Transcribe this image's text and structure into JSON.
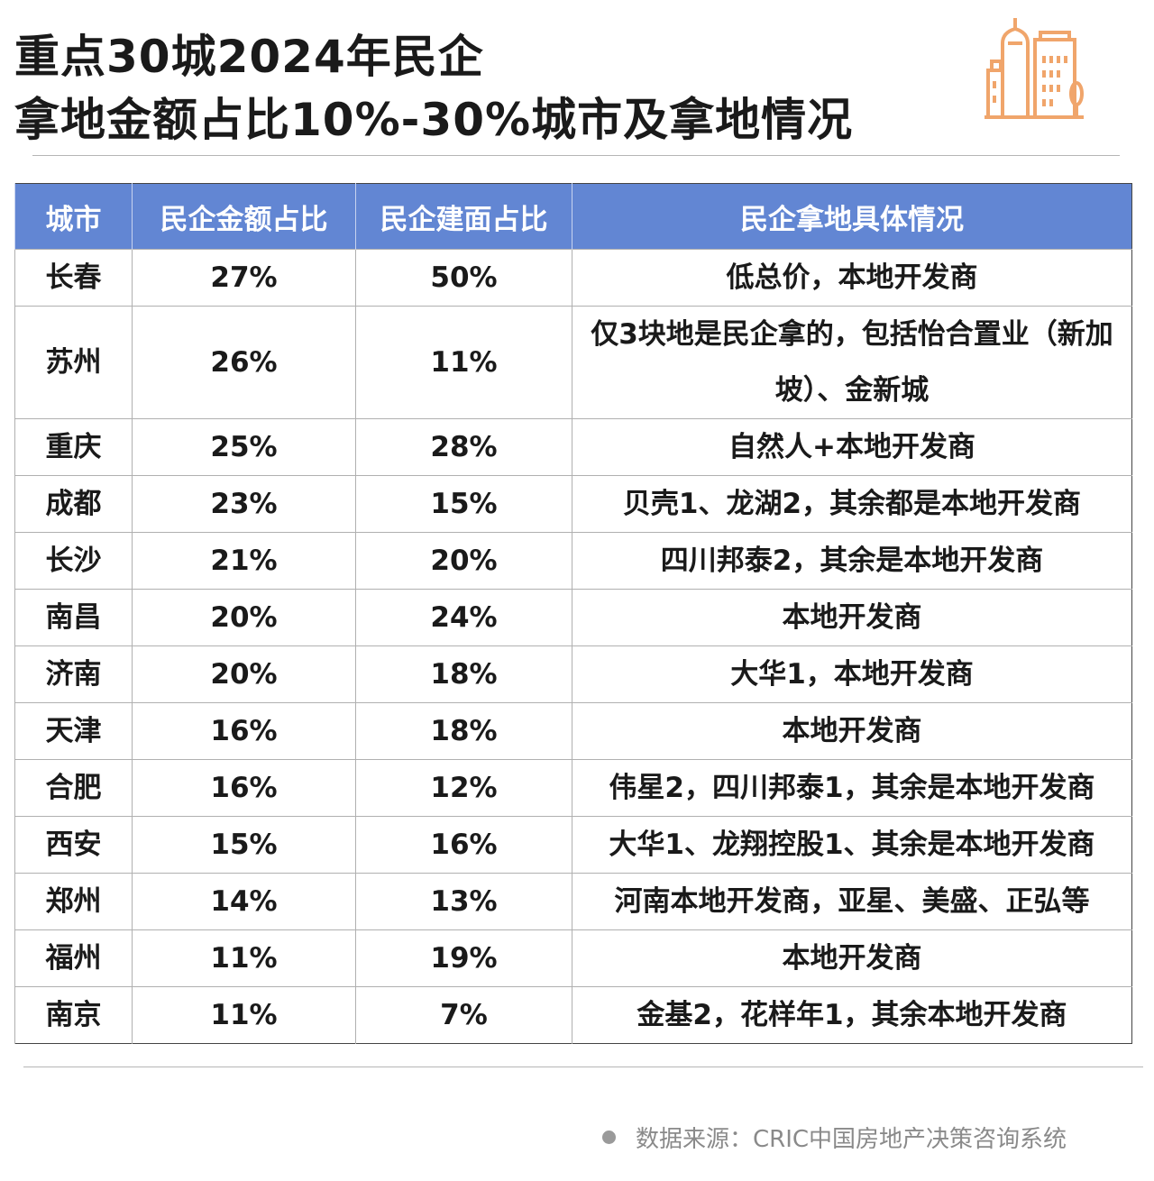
{
  "title": {
    "line1": "重点30城2024年民企",
    "line2": "拿地金额占比10%-30%城市及拿地情况"
  },
  "logo_icon": "city-buildings-icon",
  "colors": {
    "header_bg": "#6286d3",
    "logo": "#f0a56b"
  },
  "chart_data": {
    "type": "table",
    "columns": [
      "城市",
      "民企金额占比",
      "民企建面占比",
      "民企拿地具体情况"
    ],
    "rows": [
      [
        "长春",
        "27%",
        "50%",
        "低总价，本地开发商"
      ],
      [
        "苏州",
        "26%",
        "11%",
        "仅3块地是民企拿的，包括怡合置业（新加坡）、金新城"
      ],
      [
        "重庆",
        "25%",
        "28%",
        "自然人+本地开发商"
      ],
      [
        "成都",
        "23%",
        "15%",
        "贝壳1、龙湖2，其余都是本地开发商"
      ],
      [
        "长沙",
        "21%",
        "20%",
        "四川邦泰2，其余是本地开发商"
      ],
      [
        "南昌",
        "20%",
        "24%",
        "本地开发商"
      ],
      [
        "济南",
        "20%",
        "18%",
        "大华1，本地开发商"
      ],
      [
        "天津",
        "16%",
        "18%",
        "本地开发商"
      ],
      [
        "合肥",
        "16%",
        "12%",
        "伟星2，四川邦泰1，其余是本地开发商"
      ],
      [
        "西安",
        "15%",
        "16%",
        "大华1、龙翔控股1、其余是本地开发商"
      ],
      [
        "郑州",
        "14%",
        "13%",
        "河南本地开发商，亚星、美盛、正弘等"
      ],
      [
        "福州",
        "11%",
        "19%",
        "本地开发商"
      ],
      [
        "南京",
        "11%",
        "7%",
        "金基2，花样年1，其余本地开发商"
      ]
    ]
  },
  "source": "数据来源：CRIC中国房地产决策咨询系统"
}
